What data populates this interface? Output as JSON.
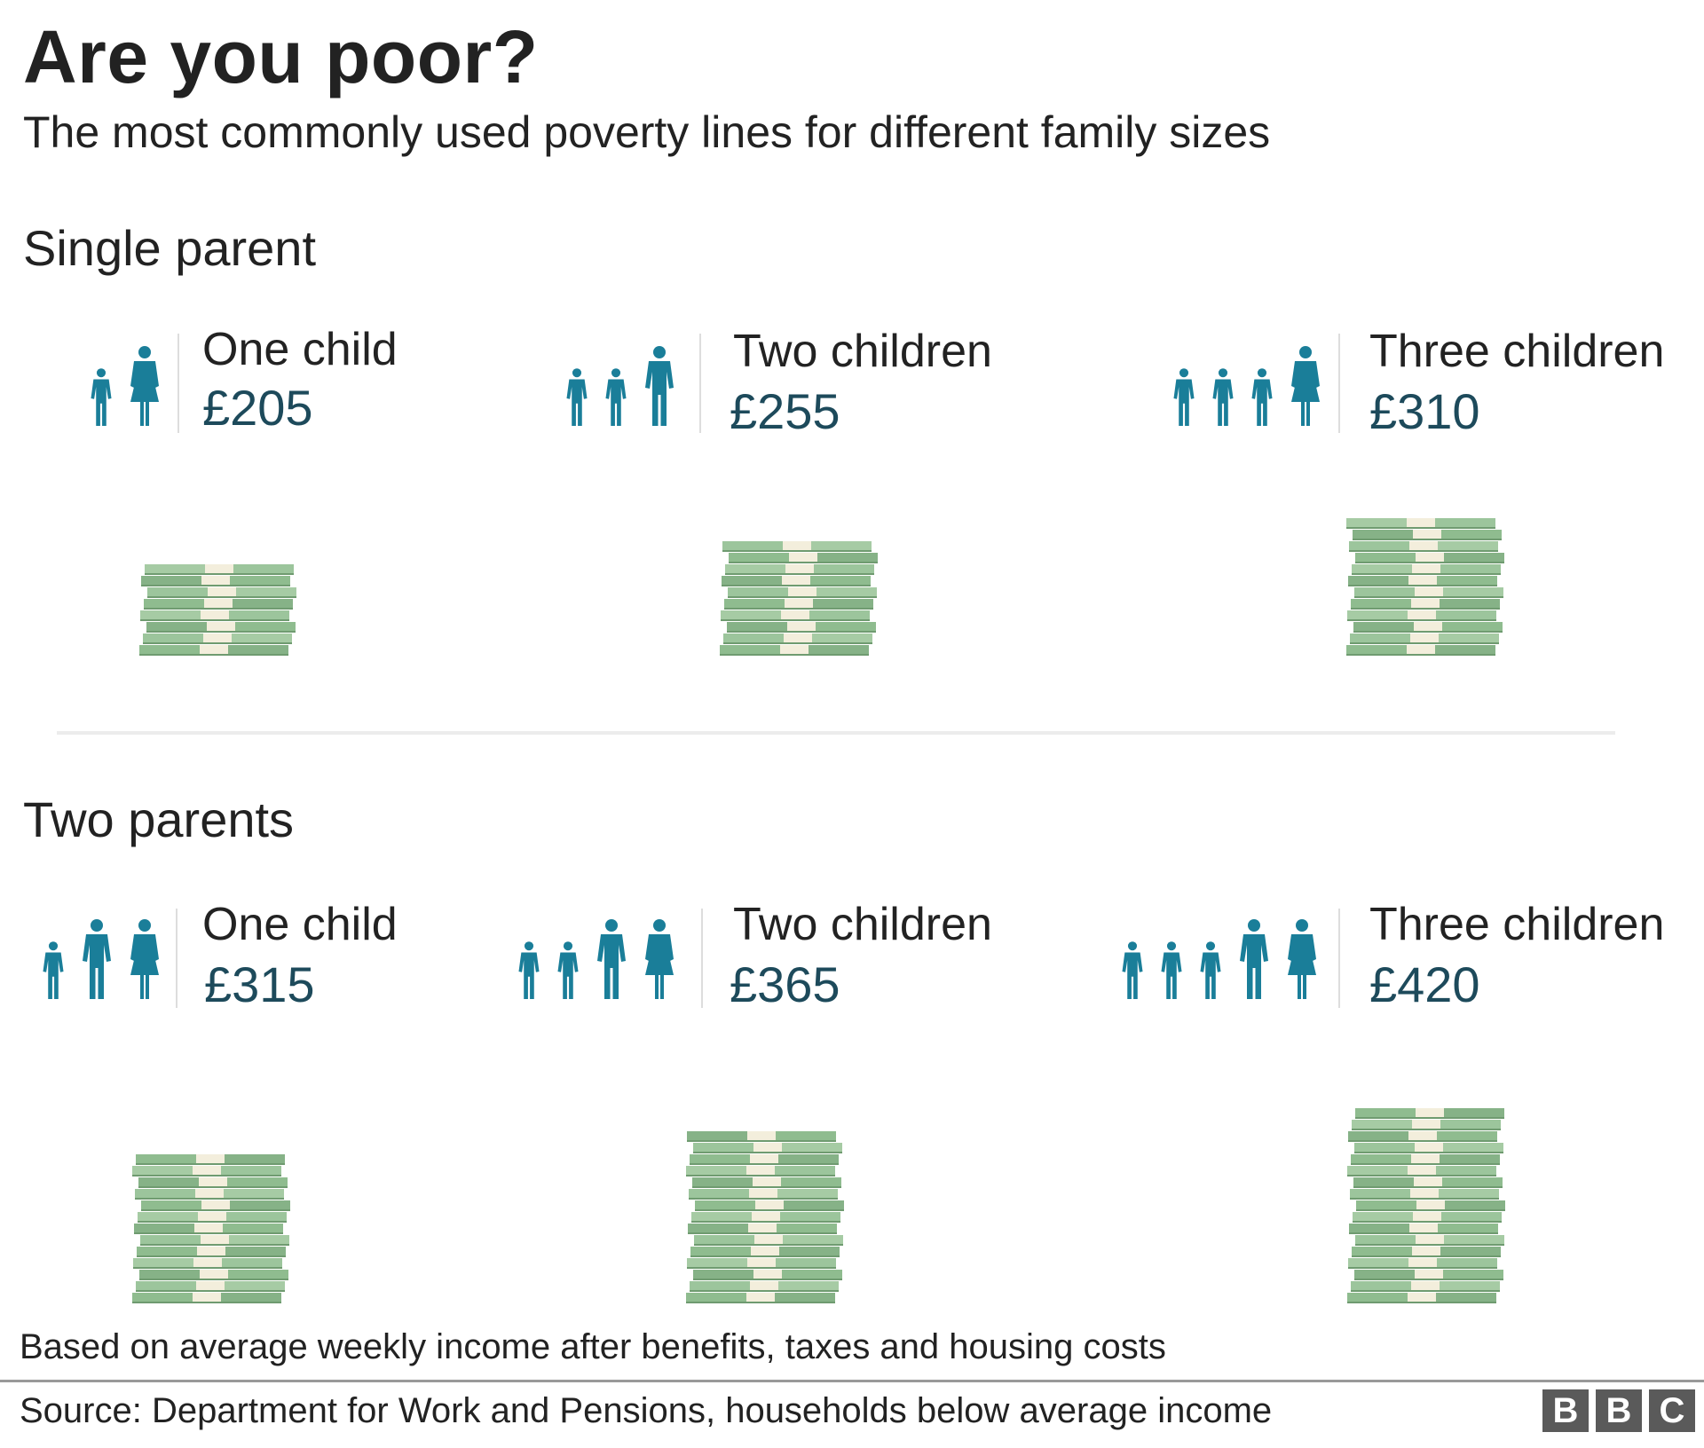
{
  "title": "Are you poor?",
  "subtitle": "The most commonly used poverty lines for different family sizes",
  "sections": [
    {
      "title": "Single parent",
      "cells": [
        {
          "label": "One child",
          "value": "£205",
          "family": [
            "child",
            "woman"
          ]
        },
        {
          "label": "Two children",
          "value": "£255",
          "family": [
            "child",
            "child",
            "man"
          ]
        },
        {
          "label": "Three children",
          "value": "£310",
          "family": [
            "child",
            "child",
            "child",
            "woman"
          ]
        }
      ]
    },
    {
      "title": "Two parents",
      "cells": [
        {
          "label": "One child",
          "value": "£315",
          "family": [
            "child",
            "man",
            "woman"
          ]
        },
        {
          "label": "Two children",
          "value": "£365",
          "family": [
            "child",
            "child",
            "man",
            "woman"
          ]
        },
        {
          "label": "Three children",
          "value": "£420",
          "family": [
            "child",
            "child",
            "child",
            "man",
            "woman"
          ]
        }
      ]
    }
  ],
  "chart_data": {
    "type": "bar",
    "categories": [
      "One child",
      "Two children",
      "Three children"
    ],
    "series": [
      {
        "name": "Single parent",
        "values": [
          205,
          255,
          310
        ]
      },
      {
        "name": "Two parents",
        "values": [
          315,
          365,
          420
        ]
      }
    ],
    "unit": "£ per week"
  },
  "note": "Based on average weekly income after benefits, taxes and housing costs",
  "source": "Source: Department for Work and Pensions, households below average income",
  "logo": {
    "letters": [
      "B",
      "B",
      "C"
    ]
  },
  "colors": {
    "person": "#1a7e99",
    "value_text": "#1d4a5b",
    "note_green": "#8fbc8f",
    "note_band": "#f3eedc",
    "logo": "#5a5a5a"
  },
  "icons": {
    "person": "person-icon",
    "money": "money-stack-icon"
  }
}
